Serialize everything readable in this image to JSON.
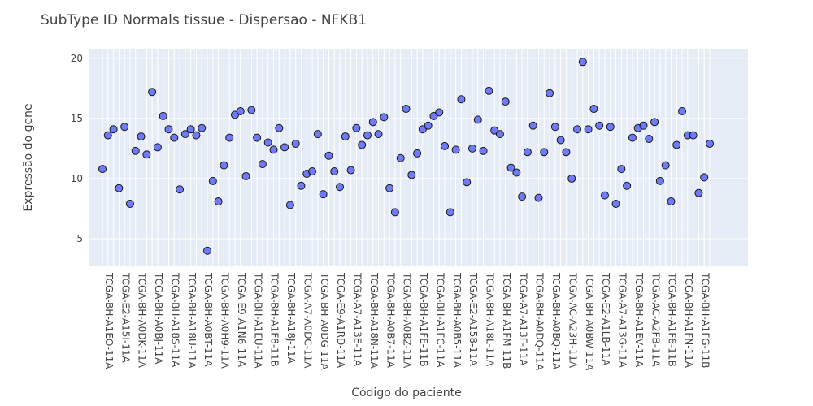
{
  "chart_data": {
    "type": "scatter",
    "title": "SubType ID Normals tissue - Dispersao - NFKB1",
    "xlabel": "Código do paciente",
    "ylabel": "Expressão do gene",
    "ylim": [
      2.7,
      20.8
    ],
    "yticks": [
      5,
      10,
      15,
      20
    ],
    "grid": true,
    "marker_color": "#636efa",
    "plot_bg": "#e5ecf6",
    "x_tick_labels": [
      "TCGA-BH-A1EO-11A",
      "TCGA-E2-A15I-11A",
      "TCGA-BH-A0DK-11A",
      "TCGA-BH-A0BJ-11A",
      "TCGA-BH-A18S-11A",
      "TCGA-BH-A18U-11A",
      "TCGA-BH-A0BT-11A",
      "TCGA-BH-A0H9-11A",
      "TCGA-E9-A1N6-11A",
      "TCGA-BH-A1EU-11A",
      "TCGA-BH-A1F8-11B",
      "TCGA-BH-A18J-11A",
      "TCGA-A7-A0DC-11A",
      "TCGA-BH-A0DG-11A",
      "TCGA-E9-A1RD-11A",
      "TCGA-A7-A13E-11A",
      "TCGA-BH-A18N-11A",
      "TCGA-BH-A0B7-11A",
      "TCGA-BH-A0BZ-11A",
      "TCGA-BH-A1FE-11B",
      "TCGA-BH-A1FC-11A",
      "TCGA-BH-A0B5-11A",
      "TCGA-E2-A158-11A",
      "TCGA-BH-A18L-11A",
      "TCGA-BH-A1FM-11B",
      "TCGA-A7-A13F-11A",
      "TCGA-BH-A0DQ-11A",
      "TCGA-BH-A0BQ-11A",
      "TCGA-AC-A23H-11A",
      "TCGA-BH-A0BW-11A",
      "TCGA-E2-A1LB-11A",
      "TCGA-A7-A13G-11A",
      "TCGA-BH-A1EV-11A",
      "TCGA-AC-A2FB-11A",
      "TCGA-BH-A1F6-11B",
      "TCGA-BH-A1FN-11A",
      "TCGA-BH-A1FG-11B"
    ],
    "y": [
      10.8,
      13.6,
      14.1,
      9.2,
      14.3,
      7.9,
      12.3,
      13.5,
      12.0,
      17.2,
      12.6,
      15.2,
      14.1,
      13.4,
      9.1,
      13.7,
      14.1,
      13.6,
      14.2,
      4.0,
      9.8,
      8.1,
      11.1,
      13.4,
      15.3,
      15.6,
      10.2,
      15.7,
      13.4,
      11.2,
      13.0,
      12.4,
      14.2,
      12.6,
      7.8,
      12.9,
      9.4,
      10.4,
      10.6,
      13.7,
      8.7,
      11.9,
      10.6,
      9.3,
      13.5,
      10.7,
      14.2,
      12.8,
      13.6,
      14.7,
      13.7,
      15.1,
      9.2,
      7.2,
      11.7,
      15.8,
      10.3,
      12.1,
      14.1,
      14.4,
      15.2,
      15.5,
      12.7,
      7.2,
      12.4,
      16.6,
      9.7,
      12.5,
      14.9,
      12.3,
      17.3,
      14.0,
      13.7,
      16.4,
      10.9,
      10.5,
      8.5,
      12.2,
      14.4,
      8.4,
      12.2,
      17.1,
      14.3,
      13.2,
      12.2,
      10.0,
      14.1,
      19.7,
      14.1,
      15.8,
      14.4,
      8.6,
      14.3,
      7.9,
      10.8,
      9.4,
      13.4,
      14.2,
      14.4,
      13.3,
      14.7,
      9.8,
      11.1,
      8.1,
      12.8,
      15.6,
      13.6,
      13.6,
      8.8,
      10.1,
      12.9
    ]
  }
}
